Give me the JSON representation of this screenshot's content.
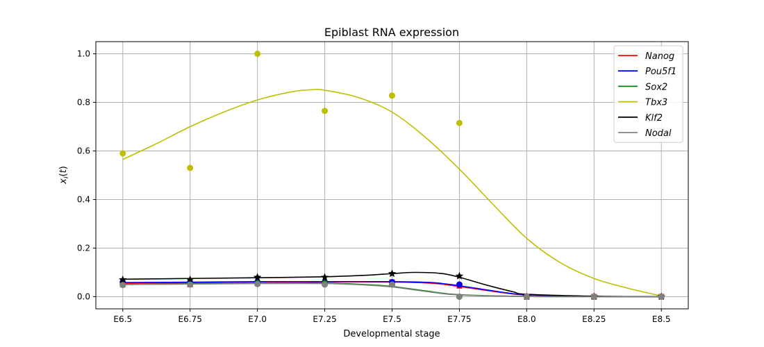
{
  "chart_data": {
    "type": "line",
    "title": "Epiblast RNA expression",
    "xlabel": "Developmental stage",
    "ylabel": "x_i(t)",
    "categories": [
      "E6.5",
      "E6.75",
      "E7.0",
      "E7.25",
      "E7.5",
      "E7.75",
      "E8.0",
      "E8.25",
      "E8.5"
    ],
    "x": [
      6.5,
      6.75,
      7.0,
      7.25,
      7.5,
      7.75,
      8.0,
      8.25,
      8.5
    ],
    "xlim": [
      6.4,
      8.6
    ],
    "ylim": [
      -0.05,
      1.05
    ],
    "yticks": [
      "0.0",
      "0.2",
      "0.4",
      "0.6",
      "0.8",
      "1.0"
    ],
    "grid": true,
    "legend_position": "top-right",
    "series": [
      {
        "name": "Nanog",
        "color": "#ff0000",
        "marker": "square",
        "points": [
          [
            6.5,
            0.05
          ],
          [
            6.75,
            0.05
          ],
          [
            7.0,
            0.055
          ],
          [
            7.25,
            0.055
          ],
          [
            7.5,
            0.06
          ],
          [
            7.75,
            0.045
          ],
          [
            8.0,
            0.0
          ],
          [
            8.25,
            0.0
          ],
          [
            8.5,
            0.0
          ]
        ],
        "curve": [
          [
            6.5,
            0.055
          ],
          [
            6.75,
            0.057
          ],
          [
            7.0,
            0.06
          ],
          [
            7.25,
            0.061
          ],
          [
            7.5,
            0.06
          ],
          [
            7.65,
            0.055
          ],
          [
            7.75,
            0.042
          ],
          [
            7.9,
            0.018
          ],
          [
            8.0,
            0.007
          ],
          [
            8.25,
            0.001
          ],
          [
            8.5,
            0.0
          ]
        ]
      },
      {
        "name": "Pou5f1",
        "color": "#0000ff",
        "marker": "circle",
        "points": [
          [
            6.5,
            0.06
          ],
          [
            6.75,
            0.06
          ],
          [
            7.0,
            0.06
          ],
          [
            7.25,
            0.06
          ],
          [
            7.5,
            0.06
          ],
          [
            7.75,
            0.05
          ],
          [
            8.0,
            0.0
          ],
          [
            8.25,
            0.0
          ],
          [
            8.5,
            0.0
          ]
        ],
        "curve": [
          [
            6.5,
            0.058
          ],
          [
            6.75,
            0.06
          ],
          [
            7.0,
            0.062
          ],
          [
            7.25,
            0.062
          ],
          [
            7.5,
            0.062
          ],
          [
            7.65,
            0.058
          ],
          [
            7.75,
            0.045
          ],
          [
            7.9,
            0.02
          ],
          [
            8.0,
            0.008
          ],
          [
            8.25,
            0.001
          ],
          [
            8.5,
            0.0
          ]
        ]
      },
      {
        "name": "Sox2",
        "color": "#008000",
        "marker": "circle",
        "points": [
          [
            6.5,
            0.05
          ],
          [
            6.75,
            0.055
          ],
          [
            7.0,
            0.055
          ],
          [
            7.25,
            0.055
          ],
          [
            7.5,
            0.05
          ],
          [
            7.75,
            0.0
          ],
          [
            8.0,
            0.0
          ],
          [
            8.25,
            0.0
          ],
          [
            8.5,
            0.0
          ]
        ],
        "curve": [
          [
            6.5,
            0.05
          ],
          [
            6.75,
            0.053
          ],
          [
            7.0,
            0.055
          ],
          [
            7.25,
            0.056
          ],
          [
            7.4,
            0.05
          ],
          [
            7.5,
            0.042
          ],
          [
            7.65,
            0.02
          ],
          [
            7.75,
            0.008
          ],
          [
            8.0,
            0.001
          ],
          [
            8.25,
            0.0
          ],
          [
            8.5,
            0.0
          ]
        ]
      },
      {
        "name": "Tbx3",
        "color": "#bfbf00",
        "marker": "circle",
        "points": [
          [
            6.5,
            0.59
          ],
          [
            6.75,
            0.53
          ],
          [
            7.0,
            1.0
          ],
          [
            7.25,
            0.765
          ],
          [
            7.5,
            0.828
          ],
          [
            7.75,
            0.715
          ],
          [
            8.0,
            0.0
          ],
          [
            8.25,
            0.0
          ],
          [
            8.5,
            0.0
          ]
        ],
        "curve": [
          [
            6.5,
            0.565
          ],
          [
            6.625,
            0.63
          ],
          [
            6.75,
            0.7
          ],
          [
            6.875,
            0.76
          ],
          [
            7.0,
            0.81
          ],
          [
            7.125,
            0.843
          ],
          [
            7.2,
            0.852
          ],
          [
            7.25,
            0.85
          ],
          [
            7.375,
            0.82
          ],
          [
            7.5,
            0.76
          ],
          [
            7.625,
            0.655
          ],
          [
            7.75,
            0.525
          ],
          [
            7.875,
            0.38
          ],
          [
            8.0,
            0.24
          ],
          [
            8.125,
            0.14
          ],
          [
            8.25,
            0.075
          ],
          [
            8.375,
            0.035
          ],
          [
            8.5,
            0.003
          ]
        ]
      },
      {
        "name": "Klf2",
        "color": "#000000",
        "marker": "star",
        "points": [
          [
            6.5,
            0.07
          ],
          [
            6.75,
            0.07
          ],
          [
            7.0,
            0.08
          ],
          [
            7.25,
            0.08
          ],
          [
            7.5,
            0.095
          ],
          [
            7.75,
            0.085
          ],
          [
            8.0,
            0.0
          ],
          [
            8.25,
            0.0
          ],
          [
            8.5,
            0.0
          ]
        ],
        "curve": [
          [
            6.5,
            0.072
          ],
          [
            6.75,
            0.075
          ],
          [
            7.0,
            0.078
          ],
          [
            7.25,
            0.082
          ],
          [
            7.4,
            0.088
          ],
          [
            7.5,
            0.095
          ],
          [
            7.58,
            0.1
          ],
          [
            7.68,
            0.096
          ],
          [
            7.75,
            0.08
          ],
          [
            7.85,
            0.048
          ],
          [
            7.95,
            0.02
          ],
          [
            8.0,
            0.01
          ],
          [
            8.25,
            0.002
          ],
          [
            8.5,
            0.0
          ]
        ]
      },
      {
        "name": "Nodal",
        "color": "#808080",
        "marker": "circle",
        "points": [
          [
            6.5,
            0.048
          ],
          [
            6.75,
            0.05
          ],
          [
            7.0,
            0.052
          ],
          [
            7.25,
            0.05
          ],
          [
            7.5,
            0.05
          ],
          [
            7.75,
            0.0
          ],
          [
            8.0,
            0.0
          ],
          [
            8.25,
            0.0
          ],
          [
            8.5,
            0.0
          ]
        ],
        "curve": [
          [
            6.5,
            0.05
          ],
          [
            6.75,
            0.052
          ],
          [
            7.0,
            0.054
          ],
          [
            7.25,
            0.054
          ],
          [
            7.4,
            0.048
          ],
          [
            7.5,
            0.04
          ],
          [
            7.65,
            0.018
          ],
          [
            7.75,
            0.007
          ],
          [
            8.0,
            0.001
          ],
          [
            8.25,
            0.0
          ],
          [
            8.5,
            0.0
          ]
        ]
      }
    ]
  }
}
